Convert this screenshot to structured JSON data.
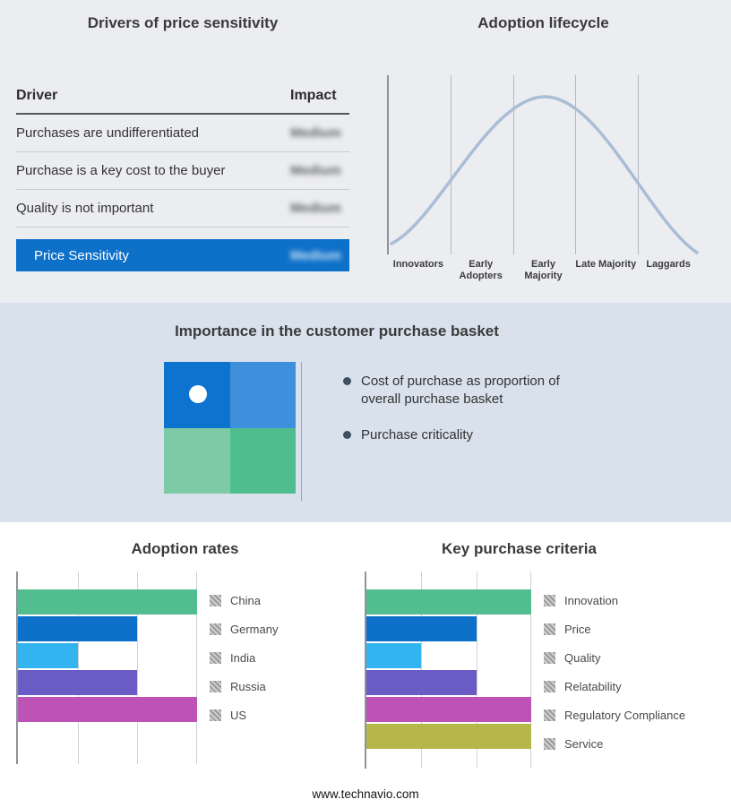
{
  "page": {
    "footer": "www.technavio.com",
    "band_colors": {
      "top": "#ecedf0",
      "middle": "#d8e1ec",
      "bottom": "#ffffff"
    }
  },
  "drivers": {
    "title": "Drivers of price sensitivity",
    "columns": {
      "driver": "Driver",
      "impact": "Impact"
    },
    "rows": [
      {
        "driver": "Purchases are undifferentiated",
        "impact": "Medium"
      },
      {
        "driver": "Purchase is a key cost to the buyer",
        "impact": "Medium"
      },
      {
        "driver": "Quality is not important",
        "impact": "Medium"
      }
    ],
    "highlight": {
      "driver": "Price Sensitivity",
      "impact": "Medium",
      "color": "#0d70c9"
    },
    "impact_values_blurred": true
  },
  "basket": {
    "title": "Importance in the customer purchase basket",
    "bullets": [
      "Cost of purchase as proportion of overall purchase basket",
      "Purchase criticality"
    ],
    "quadrant_colors": [
      "#0e72cf",
      "#3e90dc",
      "#7fcaa6",
      "#4fbd8d"
    ],
    "marker": "white dot in top-left quadrant"
  },
  "chart_data": [
    {
      "type": "bar",
      "title": "Adoption rates",
      "orientation": "horizontal",
      "categories": [
        "China",
        "Germany",
        "India",
        "Russia",
        "US"
      ],
      "values": [
        3,
        2,
        1,
        2,
        3
      ],
      "xlim": [
        0,
        3
      ],
      "value_scale": "relative (axis unlabeled, gridlines at thirds)",
      "grid": true,
      "legend_position": "right",
      "legend_swatch_style": "gray-hatched",
      "colors": [
        "#52bd8e",
        "#0d70c9",
        "#31b4f0",
        "#6a5bc5",
        "#bd53b4"
      ]
    },
    {
      "type": "bar",
      "title": "Key purchase criteria",
      "orientation": "horizontal",
      "categories": [
        "Innovation",
        "Price",
        "Quality",
        "Relatability",
        "Regulatory Compliance",
        "Service"
      ],
      "values": [
        3,
        2,
        1,
        2,
        3,
        3
      ],
      "xlim": [
        0,
        3
      ],
      "value_scale": "relative (axis unlabeled, gridlines at thirds)",
      "grid": true,
      "legend_position": "right",
      "legend_swatch_style": "gray-hatched",
      "colors": [
        "#52bd8e",
        "#0d70c9",
        "#31b4f0",
        "#6a5bc5",
        "#bd53b4",
        "#b6b74b"
      ]
    },
    {
      "type": "line",
      "title": "Adoption lifecycle",
      "categories": [
        "Innovators",
        "Early Adopters",
        "Early Majority",
        "Late Majority",
        "Laggards"
      ],
      "values": [
        8,
        55,
        100,
        55,
        8
      ],
      "shape": "bell curve (conceptual, relative heights)",
      "curve_color": "#a9bdd6",
      "grid": true
    }
  ]
}
